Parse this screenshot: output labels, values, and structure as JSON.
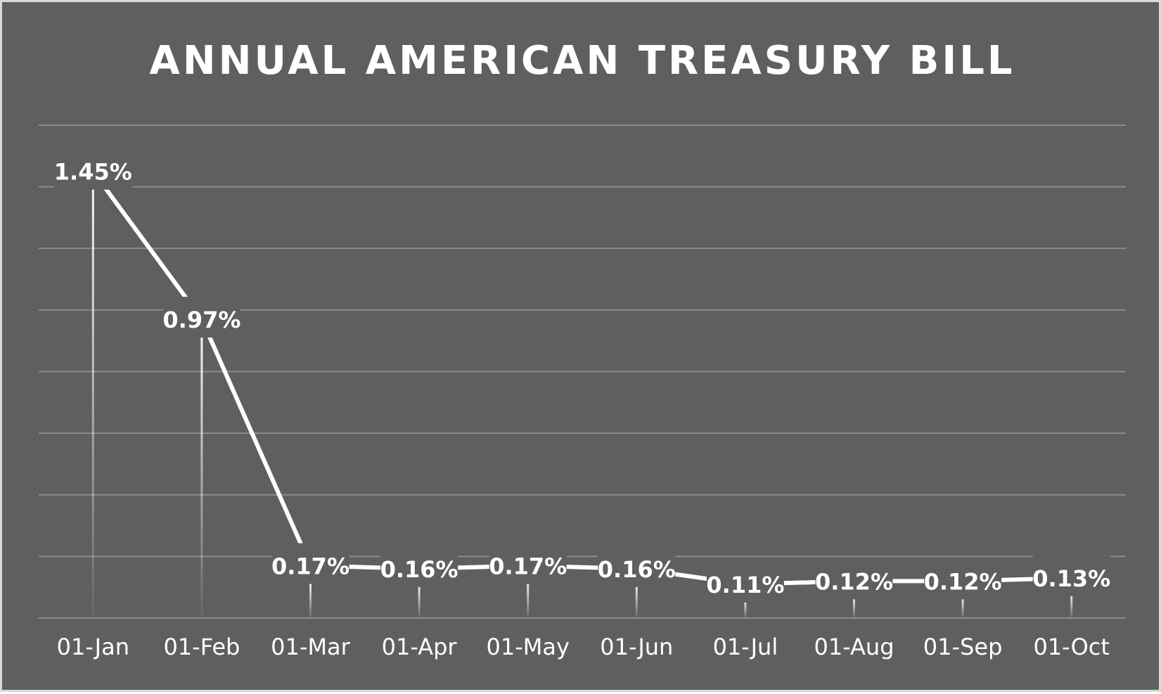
{
  "chart_data": {
    "type": "line",
    "title": "ANNUAL AMERICAN TREASURY BILL",
    "xlabel": "",
    "ylabel": "",
    "categories": [
      "01-Jan",
      "01-Feb",
      "01-Mar",
      "01-Apr",
      "01-May",
      "01-Jun",
      "01-Jul",
      "01-Aug",
      "01-Sep",
      "01-Oct"
    ],
    "series": [
      {
        "values": [
          1.45,
          0.97,
          0.17,
          0.16,
          0.17,
          0.16,
          0.11,
          0.12,
          0.12,
          0.13
        ]
      }
    ],
    "data_labels": [
      "1.45%",
      "0.97%",
      "0.17%",
      "0.16%",
      "0.17%",
      "0.16%",
      "0.11%",
      "0.12%",
      "0.12%",
      "0.13%"
    ],
    "ylim": [
      0,
      1.6
    ],
    "y_axis_visible": false,
    "grid": true,
    "legend": "none",
    "drop_lines": true,
    "colors": {
      "background": "#5f5f5f",
      "line": "#ffffff",
      "grid": "#8c8c8c",
      "text": "#ffffff",
      "border": "#d9d9d9"
    }
  }
}
